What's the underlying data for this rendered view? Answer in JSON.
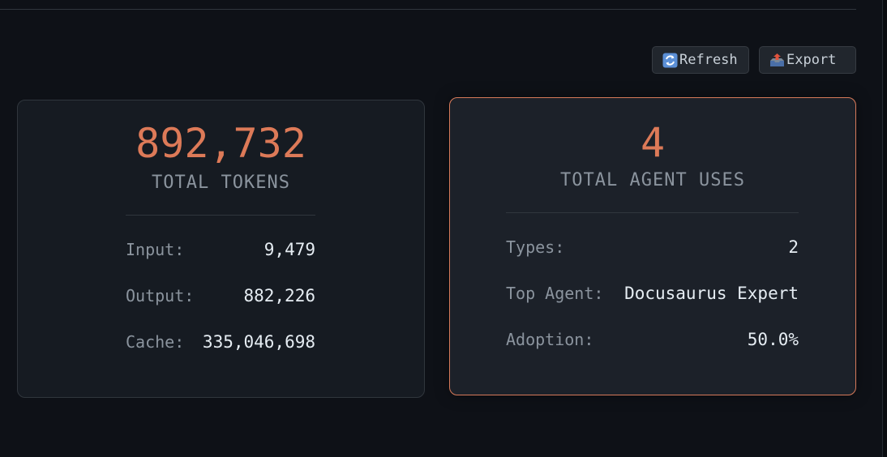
{
  "toolbar": {
    "refresh_label": "Refresh",
    "refresh_icon": "refresh-icon",
    "export_label": "Export",
    "export_icon": "outbox-tray-icon"
  },
  "tokens_card": {
    "value": "892,732",
    "label": "TOTAL TOKENS",
    "rows": [
      {
        "label": "Input:",
        "value": "9,479"
      },
      {
        "label": "Output:",
        "value": "882,226"
      },
      {
        "label": "Cache:",
        "value": "335,046,698"
      }
    ]
  },
  "agents_card": {
    "value": "4",
    "label": "TOTAL AGENT USES",
    "rows": [
      {
        "label": "Types:",
        "value": "2"
      },
      {
        "label": "Top Agent:",
        "value": "Docusaurus Expert"
      },
      {
        "label": "Adoption:",
        "value": "50.0%"
      }
    ]
  },
  "colors": {
    "background": "#0e1117",
    "card": "#161b22",
    "accent": "#dd7a58",
    "highlight_border": "#d77a5a",
    "muted_text": "#8b949e",
    "value_text": "#e6edf3"
  }
}
